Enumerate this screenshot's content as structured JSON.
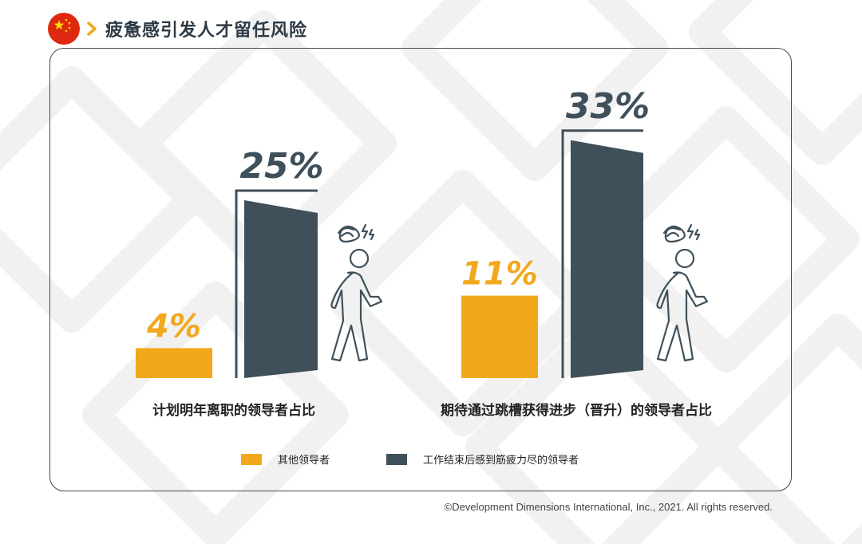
{
  "header": {
    "title": "疲惫感引发人才留任风险"
  },
  "colors": {
    "other": "#F2A81D",
    "exhausted": "#3F505B",
    "flag_red": "#DE2910",
    "flag_star": "#FFDE00",
    "accent": "#F2A81D"
  },
  "icons": {
    "flag": "china-flag-icon",
    "chevron": "chevron-right-icon",
    "person": "dizzy-walking-person-icon"
  },
  "chart_data": [
    {
      "type": "bar",
      "title": "计划明年离职的领导者占比",
      "series": [
        {
          "name": "其他领导者",
          "values": [
            4
          ],
          "label": "4%"
        },
        {
          "name": "工作结束后感到筋疲力尽的领导者",
          "values": [
            25
          ],
          "label": "25%"
        }
      ],
      "unit": "%"
    },
    {
      "type": "bar",
      "title": "期待通过跳槽获得进步（晋升）的领导者占比",
      "series": [
        {
          "name": "其他领导者",
          "values": [
            11
          ],
          "label": "11%"
        },
        {
          "name": "工作结束后感到筋疲力尽的领导者",
          "values": [
            33
          ],
          "label": "33%"
        }
      ],
      "unit": "%"
    }
  ],
  "legend": {
    "items": [
      {
        "label": "其他领导者"
      },
      {
        "label": "工作结束后感到筋疲力尽的领导者"
      }
    ]
  },
  "footer": {
    "copyright": "©Development Dimensions International, Inc., 2021. All rights reserved."
  }
}
